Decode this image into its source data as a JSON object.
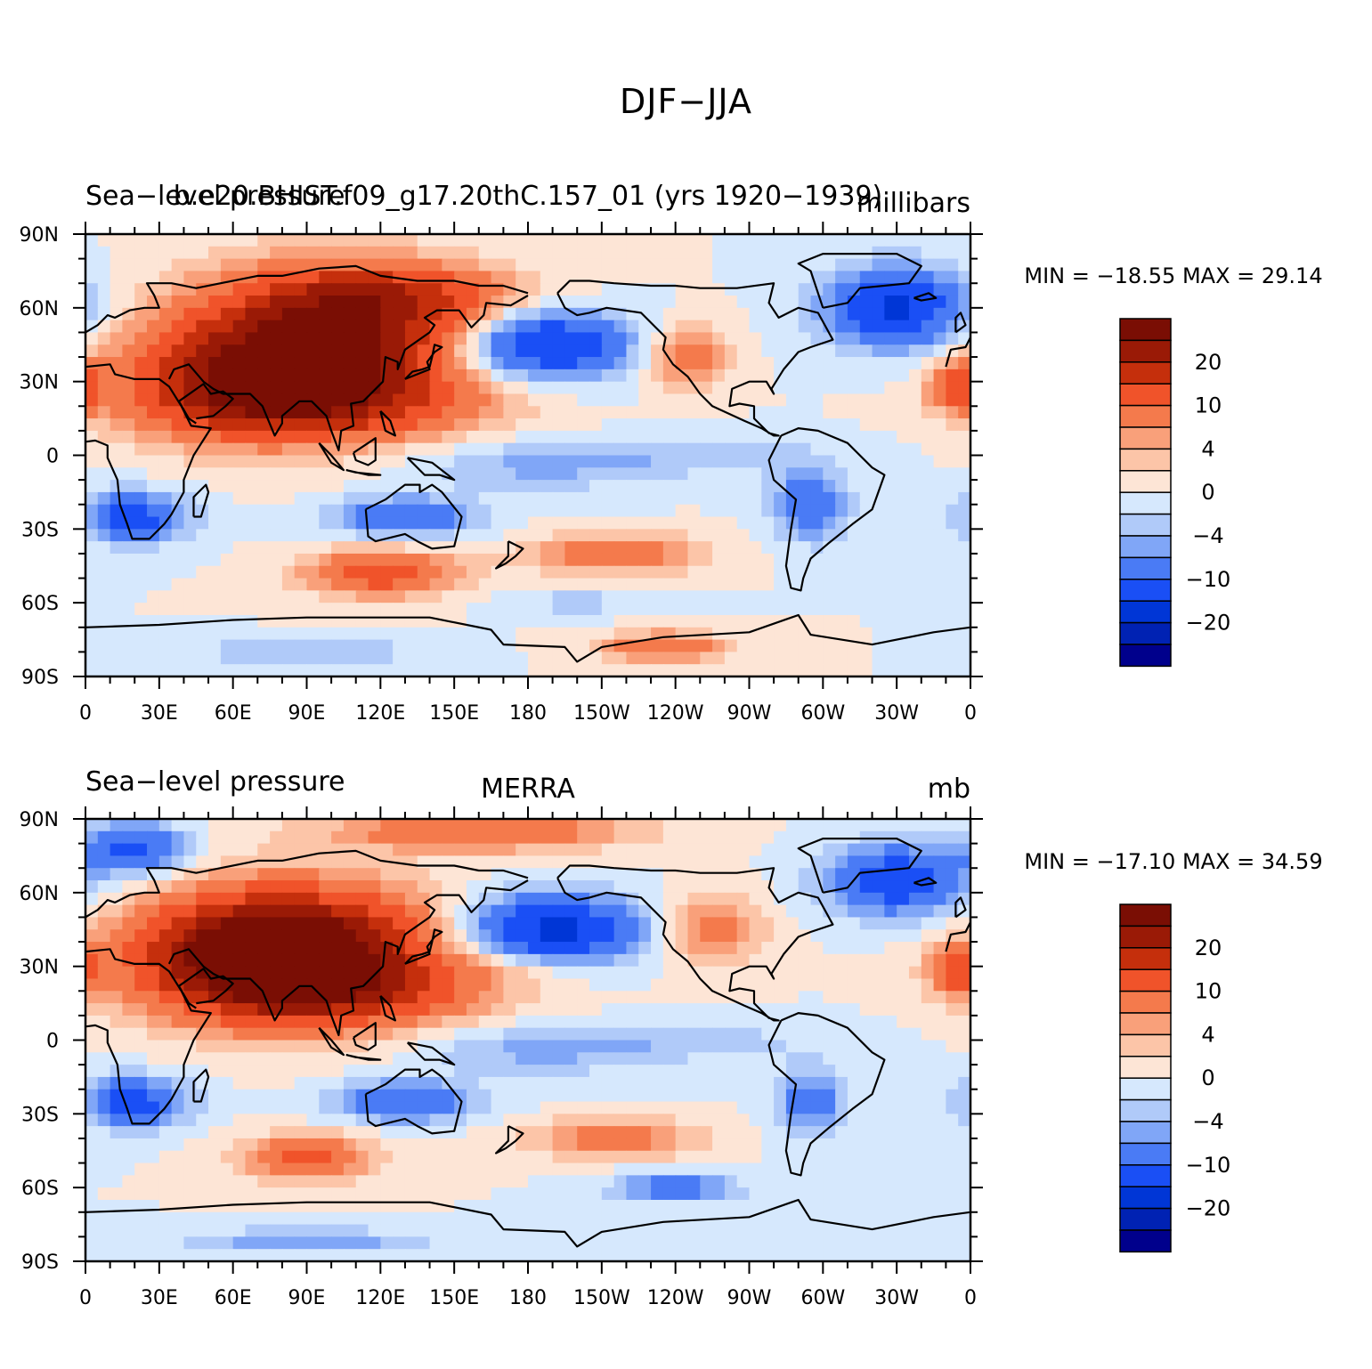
{
  "page_title": "DJF−JJA",
  "chart_data": [
    {
      "type": "heatmap",
      "title_left": "Sea−level pressure",
      "title_center": "b.e20.BHIST.f09_g17.20thC.157_01 (yrs 1920−1939)",
      "title_right": "millibars",
      "xlabel": "",
      "ylabel": "",
      "xlim": [
        0,
        360
      ],
      "ylim": [
        -90,
        90
      ],
      "x_ticks": [
        "0",
        "30E",
        "60E",
        "90E",
        "120E",
        "150E",
        "180",
        "150W",
        "120W",
        "90W",
        "60W",
        "30W",
        "0"
      ],
      "y_ticks": [
        "90S",
        "60S",
        "30S",
        "0",
        "30N",
        "60N",
        "90N"
      ],
      "min_max_label": "MIN = −18.55 MAX =   29.14",
      "min": -18.55,
      "max": 29.14,
      "colorbar_labels": [
        "20",
        "10",
        "4",
        "0",
        "−4",
        "−10",
        "−20"
      ],
      "centers": [
        {
          "lon": 100,
          "lat": 45,
          "value": 26,
          "rlon": 55,
          "rlat": 28
        },
        {
          "lon": 60,
          "lat": 30,
          "value": 16,
          "rlon": 45,
          "rlat": 22
        },
        {
          "lon": 100,
          "lat": 20,
          "value": 10,
          "rlon": 60,
          "rlat": 12
        },
        {
          "lon": 125,
          "lat": 65,
          "value": 10,
          "rlon": 50,
          "rlat": 12
        },
        {
          "lon": 185,
          "lat": 45,
          "value": -17,
          "rlon": 35,
          "rlat": 14
        },
        {
          "lon": 330,
          "lat": 60,
          "value": -16,
          "rlon": 28,
          "rlat": 16
        },
        {
          "lon": 245,
          "lat": 40,
          "value": 9,
          "rlon": 16,
          "rlat": 12
        },
        {
          "lon": 20,
          "lat": -25,
          "value": -12,
          "rlon": 22,
          "rlat": 10
        },
        {
          "lon": 130,
          "lat": -25,
          "value": -10,
          "rlon": 28,
          "rlat": 8
        },
        {
          "lon": 295,
          "lat": -20,
          "value": -10,
          "rlon": 15,
          "rlat": 14
        },
        {
          "lon": 120,
          "lat": -48,
          "value": 13,
          "rlon": 30,
          "rlat": 9
        },
        {
          "lon": 215,
          "lat": -40,
          "value": 9,
          "rlon": 35,
          "rlat": 8
        },
        {
          "lon": 235,
          "lat": -78,
          "value": 10,
          "rlon": 25,
          "rlat": 6
        },
        {
          "lon": 90,
          "lat": -80,
          "value": -5,
          "rlon": 40,
          "rlat": 5
        },
        {
          "lon": 355,
          "lat": 28,
          "value": 12,
          "rlon": 12,
          "rlat": 10
        },
        {
          "lon": 240,
          "lat": 0,
          "value": -3,
          "rlon": 60,
          "rlat": 8
        },
        {
          "lon": 180,
          "lat": -5,
          "value": -4,
          "rlon": 50,
          "rlat": 10
        },
        {
          "lon": 200,
          "lat": -60,
          "value": -3,
          "rlon": 30,
          "rlat": 5
        }
      ]
    },
    {
      "type": "heatmap",
      "title_left": "Sea−level pressure",
      "title_center": "MERRA",
      "title_right": "mb",
      "xlabel": "",
      "ylabel": "",
      "xlim": [
        0,
        360
      ],
      "ylim": [
        -90,
        90
      ],
      "x_ticks": [
        "0",
        "30E",
        "60E",
        "90E",
        "120E",
        "150E",
        "180",
        "150W",
        "120W",
        "90W",
        "60W",
        "30W",
        "0"
      ],
      "y_ticks": [
        "90S",
        "60S",
        "30S",
        "0",
        "30N",
        "60N",
        "90N"
      ],
      "min_max_label": "MIN = −17.10 MAX =   34.59",
      "min": -17.1,
      "max": 34.59,
      "colorbar_labels": [
        "20",
        "10",
        "4",
        "0",
        "−4",
        "−10",
        "−20"
      ],
      "centers": [
        {
          "lon": 90,
          "lat": 35,
          "value": 28,
          "rlon": 50,
          "rlat": 25
        },
        {
          "lon": 60,
          "lat": 35,
          "value": 16,
          "rlon": 45,
          "rlat": 22
        },
        {
          "lon": 110,
          "lat": 20,
          "value": 9,
          "rlon": 60,
          "rlat": 12
        },
        {
          "lon": 160,
          "lat": 85,
          "value": 10,
          "rlon": 60,
          "rlat": 8
        },
        {
          "lon": 190,
          "lat": 45,
          "value": -17,
          "rlon": 35,
          "rlat": 14
        },
        {
          "lon": 330,
          "lat": 65,
          "value": -14,
          "rlon": 28,
          "rlat": 14
        },
        {
          "lon": 20,
          "lat": 78,
          "value": -12,
          "rlon": 20,
          "rlat": 10
        },
        {
          "lon": 255,
          "lat": 45,
          "value": 8,
          "rlon": 20,
          "rlat": 14
        },
        {
          "lon": 20,
          "lat": -25,
          "value": -12,
          "rlon": 22,
          "rlat": 10
        },
        {
          "lon": 130,
          "lat": -25,
          "value": -11,
          "rlon": 28,
          "rlat": 8
        },
        {
          "lon": 295,
          "lat": -25,
          "value": -8,
          "rlon": 15,
          "rlat": 14
        },
        {
          "lon": 90,
          "lat": -48,
          "value": 12,
          "rlon": 25,
          "rlat": 9
        },
        {
          "lon": 215,
          "lat": -40,
          "value": 8,
          "rlon": 35,
          "rlat": 8
        },
        {
          "lon": 240,
          "lat": -60,
          "value": -8,
          "rlon": 25,
          "rlat": 6
        },
        {
          "lon": 90,
          "lat": -82,
          "value": -6,
          "rlon": 50,
          "rlat": 5
        },
        {
          "lon": 355,
          "lat": 28,
          "value": 12,
          "rlon": 12,
          "rlat": 10
        },
        {
          "lon": 240,
          "lat": 0,
          "value": -3,
          "rlon": 60,
          "rlat": 8
        },
        {
          "lon": 180,
          "lat": -5,
          "value": -4,
          "rlon": 50,
          "rlat": 10
        },
        {
          "lon": 175,
          "lat": 30,
          "value": 3,
          "rlon": 30,
          "rlat": 6
        }
      ]
    }
  ],
  "colorbar": {
    "levels": [
      -25,
      -20,
      -15,
      -10,
      -6,
      -4,
      -2,
      0,
      2,
      4,
      6,
      10,
      15,
      20,
      25
    ],
    "colors": [
      "#00008c",
      "#0022b3",
      "#0036d6",
      "#1a4ff5",
      "#4a7bf5",
      "#80a6f7",
      "#b0caf9",
      "#d6e8fd",
      "#fde5d6",
      "#fcc5a8",
      "#f9a07a",
      "#f47a4c",
      "#f0532a",
      "#c52f0c",
      "#9a1a06",
      "#7a0e04"
    ]
  },
  "land_outline": "coastlines"
}
